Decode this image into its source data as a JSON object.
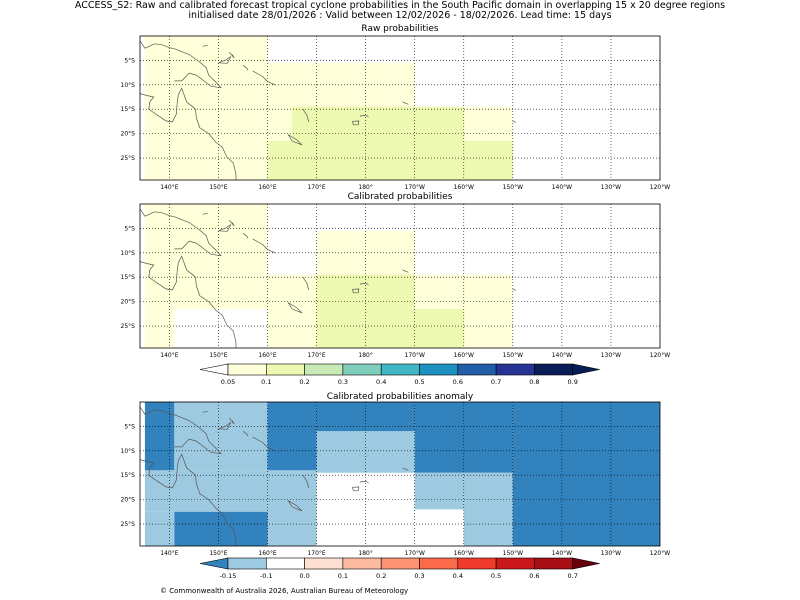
{
  "header": {
    "line1": "ACCESS_S2: Raw and calibrated forecast tropical cyclone probabilities in the South Pacific domain in overlapping 15 x 20 degree regions",
    "line2": "initialised date 28/01/2026 :  Valid between 12/02/2026 - 18/02/2026. Lead time: 15 days"
  },
  "panels": [
    {
      "id": "raw",
      "title": "Raw probabilities"
    },
    {
      "id": "cal",
      "title": "Calibrated probabilities"
    },
    {
      "id": "anom",
      "title": "Calibrated probabilities anomaly"
    }
  ],
  "axes": {
    "lon_ticks": [
      "140°E",
      "150°E",
      "160°E",
      "170°E",
      "180°",
      "170°W",
      "160°W",
      "150°W",
      "140°W",
      "130°W",
      "120°W"
    ],
    "lat_ticks": [
      "5°S",
      "10°S",
      "15°S",
      "20°S",
      "25°S"
    ]
  },
  "prob_colorbar": {
    "labels": [
      "0.05",
      "0.1",
      "0.2",
      "0.3",
      "0.4",
      "0.5",
      "0.6",
      "0.7",
      "0.8",
      "0.9"
    ],
    "colors": [
      "#ffffff",
      "#ffffd9",
      "#edf8b1",
      "#c7e9b4",
      "#7fcdbb",
      "#41b6c4",
      "#1d91c0",
      "#225ea8",
      "#253494",
      "#081d58"
    ]
  },
  "anom_colorbar": {
    "labels": [
      "-0.15",
      "-0.1",
      "0.0",
      "0.1",
      "0.2",
      "0.3",
      "0.4",
      "0.5",
      "0.6",
      "0.7"
    ],
    "colors": [
      "#3182bd",
      "#9ecae1",
      "#ffffff",
      "#fee0d2",
      "#fcbba1",
      "#fc9272",
      "#fb6a4a",
      "#ef3b2c",
      "#cb181d",
      "#a50f15",
      "#67000d"
    ]
  },
  "fields": {
    "raw": [
      {
        "lon": [
          135,
          155
        ],
        "lat": [
          0,
          -30
        ],
        "color": "#ffffd9"
      },
      {
        "lon": [
          155,
          160
        ],
        "lat": [
          0,
          -30
        ],
        "color": "#ffffd9"
      },
      {
        "lon": [
          160,
          185
        ],
        "lat": [
          -5.5,
          -30
        ],
        "color": "#ffffd9"
      },
      {
        "lon": [
          185,
          190
        ],
        "lat": [
          -5.5,
          -14.5
        ],
        "color": "#ffffd9"
      },
      {
        "lon": [
          160,
          165
        ],
        "lat": [
          -21.5,
          -30
        ],
        "color": "#edf8b1"
      },
      {
        "lon": [
          165,
          180
        ],
        "lat": [
          -14.5,
          -30
        ],
        "color": "#edf8b1"
      },
      {
        "lon": [
          180,
          200
        ],
        "lat": [
          -14.5,
          -30
        ],
        "color": "#edf8b1"
      },
      {
        "lon": [
          200,
          210
        ],
        "lat": [
          -14.5,
          -21.5
        ],
        "color": "#ffffd9"
      },
      {
        "lon": [
          200,
          210
        ],
        "lat": [
          -21.5,
          -30
        ],
        "color": "#edf8b1"
      }
    ],
    "cal": [
      {
        "lon": [
          135,
          160
        ],
        "lat": [
          0,
          -21.5
        ],
        "color": "#ffffd9"
      },
      {
        "lon": [
          135,
          141
        ],
        "lat": [
          -21.5,
          -30
        ],
        "color": "#ffffd9"
      },
      {
        "lon": [
          160,
          170
        ],
        "lat": [
          -14.5,
          -30
        ],
        "color": "#ffffd9"
      },
      {
        "lon": [
          170,
          190
        ],
        "lat": [
          -5.5,
          -14.5
        ],
        "color": "#ffffd9"
      },
      {
        "lon": [
          170,
          190
        ],
        "lat": [
          -14.5,
          -30
        ],
        "color": "#edf8b1"
      },
      {
        "lon": [
          190,
          200
        ],
        "lat": [
          -14.5,
          -21.5
        ],
        "color": "#ffffd9"
      },
      {
        "lon": [
          190,
          200
        ],
        "lat": [
          -21.5,
          -30
        ],
        "color": "#edf8b1"
      },
      {
        "lon": [
          200,
          210
        ],
        "lat": [
          -14.5,
          -30
        ],
        "color": "#ffffd9"
      }
    ],
    "anom": [
      {
        "lon": [
          135,
          141
        ],
        "lat": [
          0,
          -14
        ],
        "color": "#3182bd"
      },
      {
        "lon": [
          141,
          160
        ],
        "lat": [
          0,
          -14
        ],
        "color": "#9ecae1"
      },
      {
        "lon": [
          135,
          160
        ],
        "lat": [
          -14,
          -22.5
        ],
        "color": "#9ecae1"
      },
      {
        "lon": [
          135,
          141
        ],
        "lat": [
          -22.5,
          -30
        ],
        "color": "#9ecae1"
      },
      {
        "lon": [
          141,
          161
        ],
        "lat": [
          -22.5,
          -30
        ],
        "color": "#3182bd"
      },
      {
        "lon": [
          160,
          170
        ],
        "lat": [
          0,
          -14
        ],
        "color": "#3182bd"
      },
      {
        "lon": [
          160,
          170
        ],
        "lat": [
          -14,
          -30
        ],
        "color": "#9ecae1"
      },
      {
        "lon": [
          170,
          190
        ],
        "lat": [
          0,
          -6
        ],
        "color": "#3182bd"
      },
      {
        "lon": [
          170,
          190
        ],
        "lat": [
          -6,
          -14.5
        ],
        "color": "#9ecae1"
      },
      {
        "lon": [
          190,
          210
        ],
        "lat": [
          0,
          -14.5
        ],
        "color": "#3182bd"
      },
      {
        "lon": [
          190,
          200
        ],
        "lat": [
          -14.5,
          -22
        ],
        "color": "#9ecae1"
      },
      {
        "lon": [
          200,
          210
        ],
        "lat": [
          -14.5,
          -30
        ],
        "color": "#9ecae1"
      },
      {
        "lon": [
          210,
          241
        ],
        "lat": [
          0,
          -30
        ],
        "color": "#3182bd"
      },
      {
        "lon": [
          210,
          241
        ],
        "lat": [
          -14.5,
          -30
        ],
        "color": "#3182bd"
      }
    ]
  },
  "footer": {
    "copyright": "© Commonwealth of Australia 2026, Australian Bureau of Meteorology"
  }
}
